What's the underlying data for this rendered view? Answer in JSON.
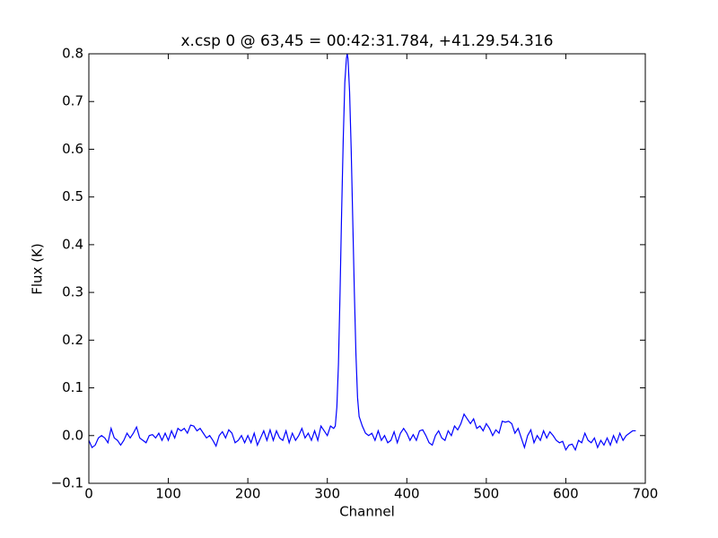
{
  "chart_data": {
    "type": "line",
    "title": "x.csp 0 @ 63,45 = 00:42:31.784, +41.29.54.316",
    "xlabel": "Channel",
    "ylabel": "Flux (K)",
    "x": [
      0,
      4,
      8,
      12,
      16,
      20,
      24,
      28,
      32,
      36,
      40,
      44,
      48,
      52,
      56,
      60,
      64,
      68,
      72,
      76,
      80,
      84,
      88,
      92,
      96,
      100,
      104,
      108,
      112,
      116,
      120,
      124,
      128,
      132,
      136,
      140,
      144,
      148,
      152,
      156,
      160,
      164,
      168,
      172,
      176,
      180,
      184,
      188,
      192,
      196,
      200,
      204,
      208,
      212,
      216,
      220,
      224,
      228,
      232,
      236,
      240,
      244,
      248,
      252,
      256,
      260,
      264,
      268,
      272,
      276,
      280,
      284,
      288,
      292,
      296,
      300,
      304,
      308,
      310,
      312,
      314,
      316,
      318,
      320,
      322,
      324,
      325,
      326,
      328,
      330,
      332,
      334,
      336,
      338,
      340,
      342,
      344,
      348,
      352,
      356,
      360,
      364,
      368,
      372,
      376,
      380,
      384,
      388,
      392,
      396,
      400,
      404,
      408,
      412,
      416,
      420,
      424,
      428,
      432,
      436,
      440,
      444,
      448,
      452,
      456,
      460,
      464,
      468,
      472,
      476,
      480,
      484,
      488,
      492,
      496,
      500,
      504,
      508,
      512,
      516,
      520,
      524,
      528,
      532,
      536,
      540,
      544,
      548,
      552,
      556,
      560,
      564,
      568,
      572,
      576,
      580,
      584,
      588,
      592,
      596,
      600,
      604,
      608,
      612,
      616,
      620,
      624,
      628,
      632,
      636,
      640,
      644,
      648,
      652,
      656,
      660,
      664,
      668,
      672,
      676,
      680,
      684,
      688
    ],
    "series": [
      {
        "name": "x.csp 0",
        "color": "#0000ff",
        "values": [
          -0.01,
          -0.025,
          -0.02,
          -0.005,
          0.0,
          -0.005,
          -0.015,
          0.015,
          -0.005,
          -0.01,
          -0.02,
          -0.01,
          0.005,
          -0.005,
          0.005,
          0.018,
          -0.005,
          -0.01,
          -0.015,
          0.0,
          0.002,
          -0.005,
          0.005,
          -0.01,
          0.005,
          -0.01,
          0.01,
          -0.005,
          0.015,
          0.01,
          0.015,
          0.005,
          0.022,
          0.02,
          0.01,
          0.015,
          0.005,
          -0.005,
          0.0,
          -0.01,
          -0.022,
          0.0,
          0.008,
          -0.005,
          0.012,
          0.005,
          -0.015,
          -0.01,
          0.0,
          -0.015,
          0.0,
          -0.015,
          0.005,
          -0.02,
          -0.005,
          0.01,
          -0.01,
          0.012,
          -0.01,
          0.01,
          -0.005,
          -0.01,
          0.01,
          -0.015,
          0.005,
          -0.01,
          0.0,
          0.015,
          -0.005,
          0.005,
          -0.01,
          0.01,
          -0.01,
          0.02,
          0.01,
          0.0,
          0.02,
          0.015,
          0.02,
          0.06,
          0.15,
          0.3,
          0.47,
          0.62,
          0.74,
          0.79,
          0.8,
          0.79,
          0.72,
          0.6,
          0.45,
          0.3,
          0.17,
          0.08,
          0.04,
          0.03,
          0.02,
          0.005,
          0.0,
          0.005,
          -0.01,
          0.01,
          -0.01,
          0.0,
          -0.015,
          -0.01,
          0.008,
          -0.015,
          0.005,
          0.015,
          0.005,
          -0.01,
          0.002,
          -0.01,
          0.01,
          0.012,
          0.0,
          -0.015,
          -0.02,
          0.0,
          0.01,
          -0.005,
          -0.01,
          0.01,
          0.0,
          0.02,
          0.012,
          0.025,
          0.045,
          0.035,
          0.025,
          0.035,
          0.015,
          0.02,
          0.01,
          0.025,
          0.015,
          0.0,
          0.012,
          0.005,
          0.03,
          0.028,
          0.03,
          0.025,
          0.005,
          0.015,
          -0.005,
          -0.025,
          0.0,
          0.012,
          -0.015,
          0.0,
          -0.01,
          0.01,
          -0.005,
          0.008,
          0.0,
          -0.01,
          -0.015,
          -0.012,
          -0.03,
          -0.02,
          -0.018,
          -0.03,
          -0.01,
          -0.015,
          0.005,
          -0.01,
          -0.015,
          -0.005,
          -0.025,
          -0.01,
          -0.02,
          -0.005,
          -0.02,
          0.0,
          -0.015,
          0.005,
          -0.01,
          0.0,
          0.005,
          0.01,
          0.01
        ]
      }
    ],
    "xlim": [
      0,
      700
    ],
    "xticks": [
      0,
      100,
      200,
      300,
      400,
      500,
      600,
      700
    ],
    "ylim": [
      -0.1,
      0.8
    ],
    "yticks": [
      {
        "value": -0.1,
        "label": "−0.1"
      },
      {
        "value": 0,
        "label": "0.0"
      },
      0.1,
      0.2,
      0.3,
      0.4,
      0.5,
      0.6,
      0.7,
      0.8
    ],
    "grid": false
  }
}
